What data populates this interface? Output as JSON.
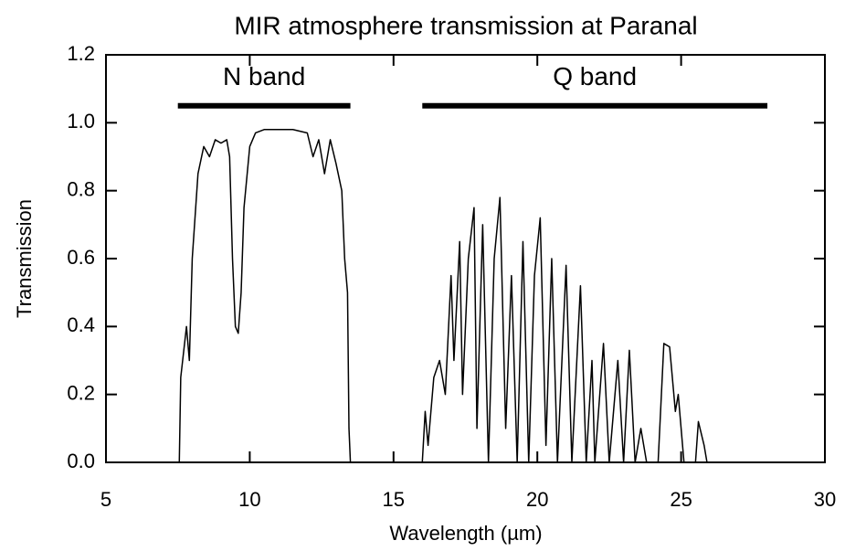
{
  "chart_data": {
    "type": "line",
    "title": "MIR atmosphere transmission at Paranal",
    "x_label": "Wavelength (µm)",
    "y_label": "Transmission",
    "xlim": [
      5,
      30
    ],
    "xticks": [
      5,
      10,
      15,
      20,
      25,
      30
    ],
    "ylim": [
      0,
      1.2
    ],
    "yticks": [
      {
        "value": 0,
        "label": "0.0"
      },
      0.2,
      0.4,
      0.6,
      0.8,
      {
        "value": 1,
        "label": "1.0"
      },
      1.2
    ],
    "color": "#000000",
    "annotations": [
      {
        "text": "N band",
        "x": [
          7.5,
          13.5
        ],
        "y": 1.05
      },
      {
        "text": "Q band",
        "x": [
          16,
          28
        ],
        "y": 1.05
      }
    ],
    "x": [
      7.55,
      7.6,
      7.8,
      7.9,
      8.0,
      8.2,
      8.4,
      8.6,
      8.8,
      9.0,
      9.2,
      9.3,
      9.4,
      9.5,
      9.6,
      9.7,
      9.8,
      10.0,
      10.2,
      10.5,
      11.0,
      11.5,
      12.0,
      12.2,
      12.4,
      12.6,
      12.8,
      13.0,
      13.2,
      13.3,
      13.4,
      13.45,
      13.5,
      16.0,
      16.1,
      16.2,
      16.4,
      16.6,
      16.8,
      17.0,
      17.1,
      17.3,
      17.4,
      17.6,
      17.8,
      17.9,
      18.1,
      18.3,
      18.5,
      18.7,
      18.9,
      19.1,
      19.3,
      19.5,
      19.7,
      19.9,
      20.1,
      20.3,
      20.5,
      20.7,
      21.0,
      21.2,
      21.5,
      21.7,
      21.9,
      22.0,
      22.3,
      22.5,
      22.8,
      23.0,
      23.2,
      23.4,
      23.6,
      23.8,
      24.2,
      24.4,
      24.6,
      24.8,
      24.9,
      25.1,
      25.5,
      25.6,
      25.8,
      25.9
    ],
    "values": [
      0,
      0.25,
      0.4,
      0.3,
      0.6,
      0.85,
      0.93,
      0.9,
      0.95,
      0.94,
      0.95,
      0.9,
      0.6,
      0.4,
      0.38,
      0.5,
      0.75,
      0.93,
      0.97,
      0.98,
      0.98,
      0.98,
      0.97,
      0.9,
      0.95,
      0.85,
      0.95,
      0.88,
      0.8,
      0.6,
      0.5,
      0.1,
      0,
      0,
      0.15,
      0.05,
      0.25,
      0.3,
      0.2,
      0.55,
      0.3,
      0.65,
      0.2,
      0.6,
      0.75,
      0.1,
      0.7,
      0,
      0.6,
      0.78,
      0.1,
      0.55,
      0,
      0.65,
      0,
      0.55,
      0.72,
      0.05,
      0.6,
      0,
      0.58,
      0,
      0.52,
      0,
      0.3,
      0,
      0.35,
      0,
      0.3,
      0,
      0.33,
      0,
      0.1,
      0,
      0,
      0.35,
      0.34,
      0.15,
      0.2,
      0,
      0,
      0.12,
      0.05,
      0
    ]
  }
}
